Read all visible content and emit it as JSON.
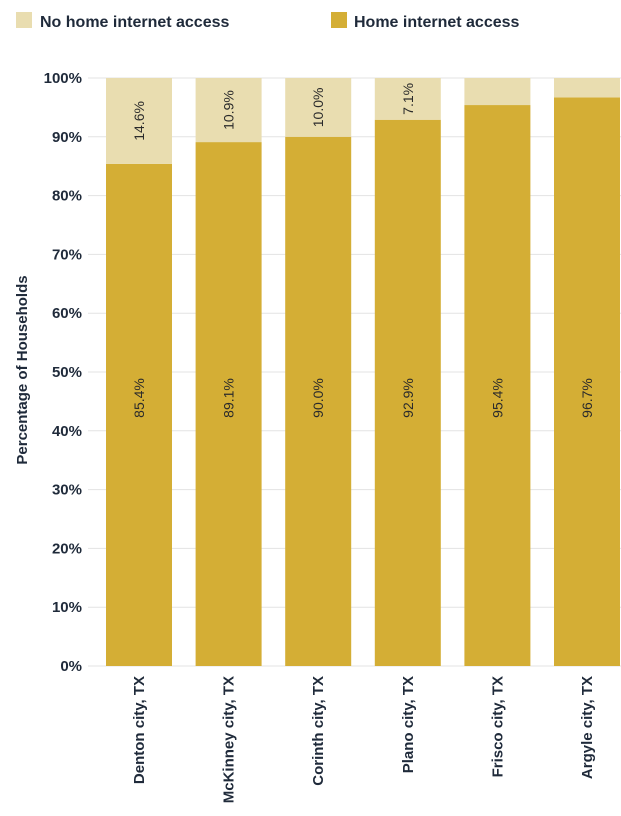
{
  "chart_data": {
    "type": "bar",
    "stacked": true,
    "orientation": "vertical",
    "categories": [
      "Denton city, TX",
      "McKinney city, TX",
      "Corinth city, TX",
      "Plano city, TX",
      "Frisco city, TX",
      "Argyle city, TX"
    ],
    "series": [
      {
        "name": "Home internet access",
        "values": [
          85.4,
          89.1,
          90.0,
          92.9,
          95.4,
          96.7
        ],
        "labels": [
          "85.4%",
          "89.1%",
          "90.0%",
          "92.9%",
          "95.4%",
          "96.7%"
        ],
        "color": "#D4AE35"
      },
      {
        "name": "No home internet access",
        "values": [
          14.6,
          10.9,
          10.0,
          7.1,
          4.6,
          3.3
        ],
        "labels": [
          "14.6%",
          "10.9%",
          "10.0%",
          "7.1%",
          "",
          ""
        ],
        "color": "#E9DDB0"
      }
    ],
    "ylabel": "Percentage of Households",
    "xlabel": "",
    "ylim": [
      0,
      100
    ],
    "yticks": [
      "0%",
      "10%",
      "20%",
      "30%",
      "40%",
      "50%",
      "60%",
      "70%",
      "80%",
      "90%",
      "100%"
    ],
    "grid": true,
    "legend_position": "top"
  }
}
